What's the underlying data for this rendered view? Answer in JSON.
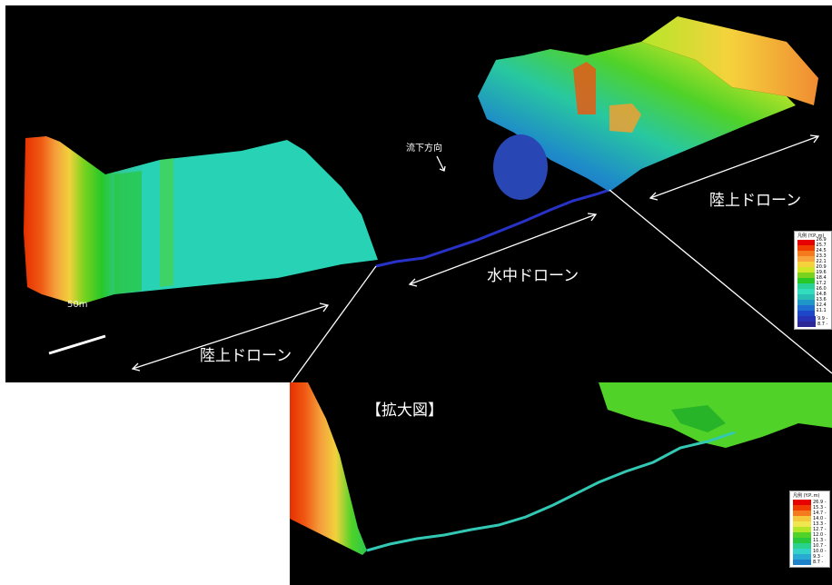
{
  "main": {
    "labels": {
      "flow_direction": "流下方向",
      "land_drone_right": "陸上ドローン",
      "underwater_drone": "水中ドローン",
      "land_drone_left": "陸上ドローン",
      "scale": "50m"
    },
    "legend": {
      "title": "凡例 (Y.P..m)",
      "entries": [
        {
          "value": "26.9",
          "color": "#e60000"
        },
        {
          "value": "25.7",
          "color": "#f03c00"
        },
        {
          "value": "24.5",
          "color": "#f57a1e"
        },
        {
          "value": "23.3",
          "color": "#f8a43c"
        },
        {
          "value": "22.1",
          "color": "#f5d23c"
        },
        {
          "value": "20.9",
          "color": "#d2e628"
        },
        {
          "value": "19.6",
          "color": "#7ad21e"
        },
        {
          "value": "18.4",
          "color": "#28c828"
        },
        {
          "value": "17.2",
          "color": "#28d296"
        },
        {
          "value": "16.0",
          "color": "#32dcbe"
        },
        {
          "value": "14.8",
          "color": "#28beb4"
        },
        {
          "value": "13.6",
          "color": "#1e96c8"
        },
        {
          "value": "12.4",
          "color": "#1e6ed2"
        },
        {
          "value": "11.1",
          "color": "#1e46c8"
        },
        {
          "value": "9.9",
          "color": "#2832b4"
        },
        {
          "value": "8.7",
          "color": "#2d2896"
        }
      ]
    }
  },
  "zoom": {
    "title": "【拡大図】",
    "legend": {
      "title": "凡例 (Y.P..m)",
      "entries": [
        {
          "value": "26.9",
          "color": "#e60000"
        },
        {
          "value": "15.3",
          "color": "#f03c00"
        },
        {
          "value": "14.7",
          "color": "#f57a1e"
        },
        {
          "value": "14.0",
          "color": "#f5c83c"
        },
        {
          "value": "13.3",
          "color": "#f0e650"
        },
        {
          "value": "12.7",
          "color": "#b4e628"
        },
        {
          "value": "12.0",
          "color": "#50d228"
        },
        {
          "value": "11.3",
          "color": "#28c83c"
        },
        {
          "value": "10.7",
          "color": "#28d28c"
        },
        {
          "value": "10.0",
          "color": "#32d2c8"
        },
        {
          "value": "9.3",
          "color": "#28aad2"
        },
        {
          "value": "8.7",
          "color": "#1e82c8"
        }
      ]
    }
  }
}
